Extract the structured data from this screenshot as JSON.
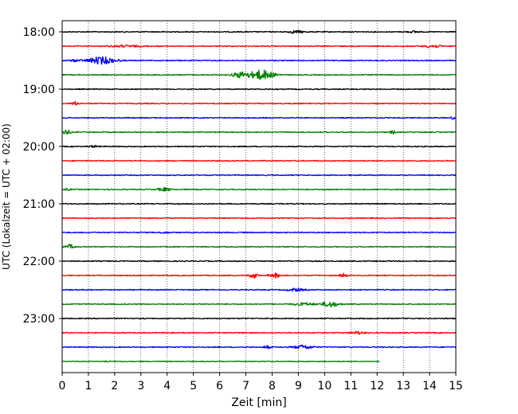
{
  "chart_data": {
    "type": "line",
    "title": "",
    "xlabel": "Zeit  [min]",
    "ylabel": "UTC (Lokalzeit = UTC + 02:00)",
    "xlim": [
      0,
      15
    ],
    "x_ticks": [
      0,
      1,
      2,
      3,
      4,
      5,
      6,
      7,
      8,
      9,
      10,
      11,
      12,
      13,
      14,
      15
    ],
    "x_tick_labels": [
      "0",
      "1",
      "2",
      "3",
      "4",
      "5",
      "6",
      "7",
      "8",
      "9",
      "10",
      "11",
      "12",
      "13",
      "14",
      "15"
    ],
    "y_tick_labels": [
      "18:00",
      "19:00",
      "20:00",
      "21:00",
      "22:00",
      "23:00"
    ],
    "y_tick_traces": [
      0,
      4,
      8,
      12,
      16,
      20
    ],
    "trace_interval_min": 15,
    "grid": {
      "x": true,
      "y": false,
      "style": "dotted"
    },
    "colors": [
      "#000000",
      "#ff0000",
      "#0000ff",
      "#008000"
    ],
    "traces": [
      {
        "start": "18:00",
        "color": "#000000",
        "x_end": 15,
        "noise": 0.6,
        "events": [
          {
            "x": 8.9,
            "amp": 1.6,
            "w": 0.3
          },
          {
            "x": 13.4,
            "amp": 1.0,
            "w": 0.2
          }
        ]
      },
      {
        "start": "18:15",
        "color": "#ff0000",
        "x_end": 15,
        "noise": 0.6,
        "events": [
          {
            "x": 2.4,
            "amp": 1.0,
            "w": 0.6
          },
          {
            "x": 14.1,
            "amp": 1.8,
            "w": 0.3
          }
        ]
      },
      {
        "start": "18:30",
        "color": "#0000ff",
        "x_end": 15,
        "noise": 0.6,
        "events": [
          {
            "x": 1.5,
            "amp": 4.5,
            "w": 0.5
          },
          {
            "x": 0.5,
            "amp": 1.0,
            "w": 0.2
          }
        ]
      },
      {
        "start": "18:45",
        "color": "#008000",
        "x_end": 15,
        "noise": 0.6,
        "events": [
          {
            "x": 6.8,
            "amp": 3.5,
            "w": 0.3
          },
          {
            "x": 7.6,
            "amp": 6.0,
            "w": 0.45
          }
        ]
      },
      {
        "start": "19:00",
        "color": "#000000",
        "x_end": 15,
        "noise": 0.6,
        "events": []
      },
      {
        "start": "19:15",
        "color": "#ff0000",
        "x_end": 15,
        "noise": 0.6,
        "events": [
          {
            "x": 0.5,
            "amp": 2.4,
            "w": 0.12
          }
        ]
      },
      {
        "start": "19:30",
        "color": "#0000ff",
        "x_end": 15,
        "noise": 0.6,
        "events": [
          {
            "x": 14.9,
            "amp": 1.6,
            "w": 0.1
          }
        ]
      },
      {
        "start": "19:45",
        "color": "#008000",
        "x_end": 15,
        "noise": 0.6,
        "events": [
          {
            "x": 0.15,
            "amp": 3.2,
            "w": 0.15
          },
          {
            "x": 12.6,
            "amp": 2.0,
            "w": 0.1
          }
        ]
      },
      {
        "start": "20:00",
        "color": "#000000",
        "x_end": 15,
        "noise": 0.6,
        "events": [
          {
            "x": 1.2,
            "amp": 1.0,
            "w": 0.2
          }
        ]
      },
      {
        "start": "20:15",
        "color": "#ff0000",
        "x_end": 15,
        "noise": 0.6,
        "events": []
      },
      {
        "start": "20:30",
        "color": "#0000ff",
        "x_end": 15,
        "noise": 0.6,
        "events": []
      },
      {
        "start": "20:45",
        "color": "#008000",
        "x_end": 15,
        "noise": 0.6,
        "events": [
          {
            "x": 0.2,
            "amp": 1.2,
            "w": 0.1
          },
          {
            "x": 3.9,
            "amp": 2.0,
            "w": 0.25
          }
        ]
      },
      {
        "start": "21:00",
        "color": "#000000",
        "x_end": 15,
        "noise": 0.6,
        "events": []
      },
      {
        "start": "21:15",
        "color": "#ff0000",
        "x_end": 15,
        "noise": 0.6,
        "events": []
      },
      {
        "start": "21:30",
        "color": "#0000ff",
        "x_end": 15,
        "noise": 0.6,
        "events": [
          {
            "x": 3.9,
            "amp": 1.0,
            "w": 0.15
          }
        ]
      },
      {
        "start": "21:45",
        "color": "#008000",
        "x_end": 15,
        "noise": 0.6,
        "events": [
          {
            "x": 0.3,
            "amp": 2.6,
            "w": 0.15
          }
        ]
      },
      {
        "start": "22:00",
        "color": "#000000",
        "x_end": 15,
        "noise": 0.6,
        "events": []
      },
      {
        "start": "22:15",
        "color": "#ff0000",
        "x_end": 15,
        "noise": 0.6,
        "events": [
          {
            "x": 7.3,
            "amp": 3.2,
            "w": 0.15
          },
          {
            "x": 8.1,
            "amp": 2.8,
            "w": 0.2
          },
          {
            "x": 10.7,
            "amp": 2.6,
            "w": 0.12
          }
        ]
      },
      {
        "start": "22:30",
        "color": "#0000ff",
        "x_end": 15,
        "noise": 0.6,
        "events": [
          {
            "x": 8.9,
            "amp": 1.8,
            "w": 0.3
          }
        ]
      },
      {
        "start": "22:45",
        "color": "#008000",
        "x_end": 15,
        "noise": 0.6,
        "events": [
          {
            "x": 9.2,
            "amp": 1.6,
            "w": 0.4
          },
          {
            "x": 10.2,
            "amp": 3.5,
            "w": 0.3
          }
        ]
      },
      {
        "start": "23:00",
        "color": "#000000",
        "x_end": 15,
        "noise": 0.6,
        "events": []
      },
      {
        "start": "23:15",
        "color": "#ff0000",
        "x_end": 15,
        "noise": 0.6,
        "events": [
          {
            "x": 11.3,
            "amp": 1.8,
            "w": 0.25
          }
        ]
      },
      {
        "start": "23:30",
        "color": "#0000ff",
        "x_end": 15,
        "noise": 0.6,
        "events": [
          {
            "x": 7.8,
            "amp": 1.8,
            "w": 0.12
          },
          {
            "x": 9.2,
            "amp": 2.4,
            "w": 0.35
          }
        ]
      },
      {
        "start": "23:45",
        "color": "#008000",
        "x_end": 12.1,
        "noise": 0.5,
        "events": [
          {
            "x": 1.7,
            "amp": 0.8,
            "w": 0.1
          }
        ]
      }
    ]
  }
}
